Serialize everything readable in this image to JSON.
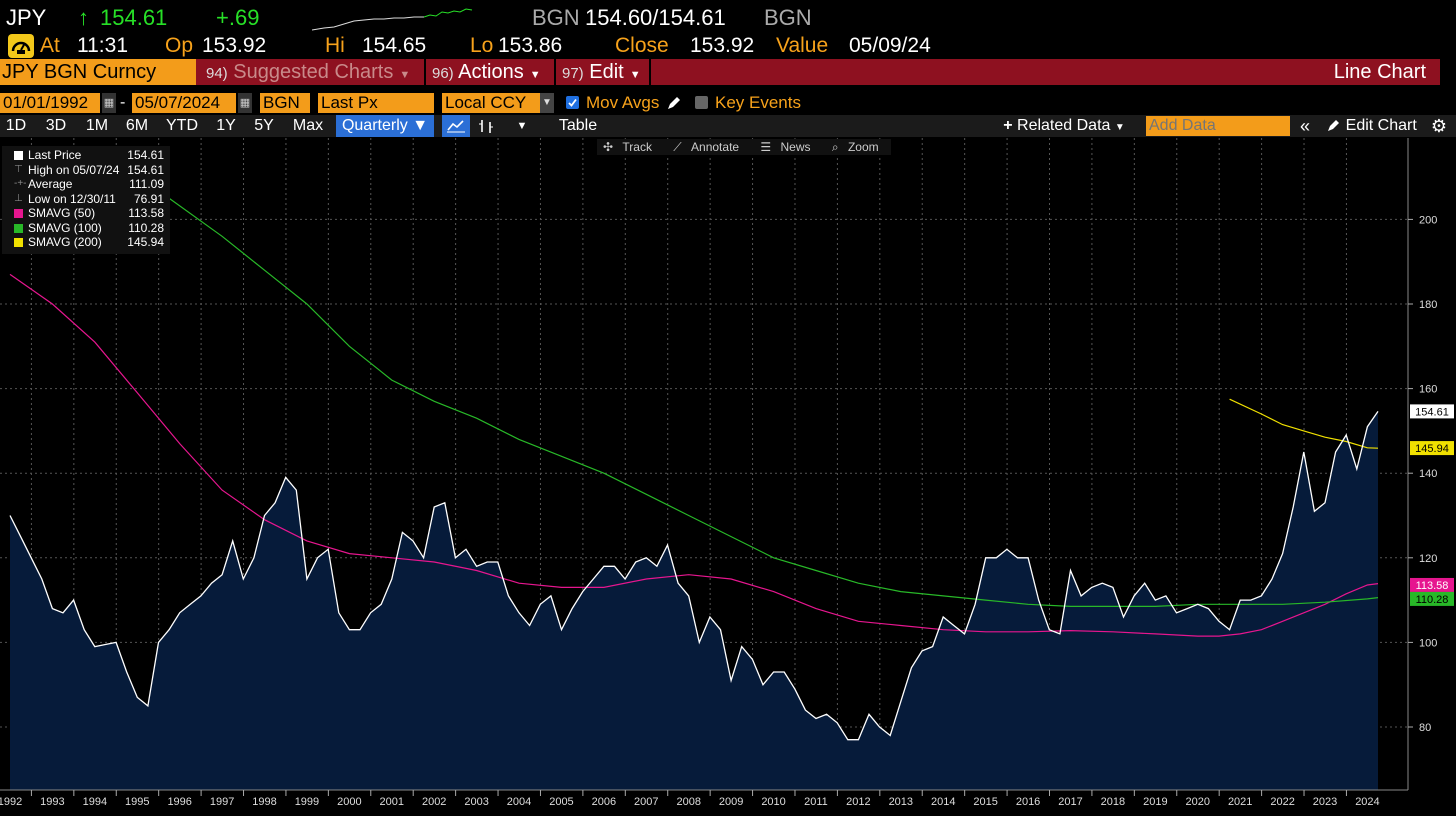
{
  "header": {
    "ticker": "JPY",
    "arrow": "↑",
    "price": "154.61",
    "change": "+.69",
    "source": "BGN",
    "bid_ask": "154.60/154.61",
    "source2": "BGN",
    "at_label": "At",
    "time": "11:31",
    "op_label": "Op",
    "open": "153.92",
    "hi_label": "Hi",
    "high": "154.65",
    "lo_label": "Lo",
    "low": "153.86",
    "close_label": "Close",
    "close": "153.92",
    "value_label": "Value",
    "value_date": "05/09/24"
  },
  "menubar": {
    "security": "JPY BGN Curncy",
    "suggested_num": "94)",
    "suggested": "Suggested Charts",
    "actions_num": "96)",
    "actions": "Actions",
    "edit_num": "97)",
    "edit": "Edit",
    "chart_type": "Line Chart"
  },
  "settings": {
    "start_date": "01/01/1992",
    "dash": "-",
    "end_date": "05/07/2024",
    "source": "BGN",
    "field": "Last Px",
    "currency": "Local CCY",
    "mov_avgs": "Mov Avgs",
    "key_events": "Key Events"
  },
  "toolbar": {
    "periods": [
      "1D",
      "3D",
      "1M",
      "6M",
      "YTD",
      "1Y",
      "5Y",
      "Max"
    ],
    "frequency": "Quarterly",
    "table": "Table",
    "related_data": "Related Data",
    "add_data_placeholder": "Add Data",
    "edit_chart": "Edit Chart"
  },
  "chart_tools": {
    "track": "Track",
    "annotate": "Annotate",
    "news": "News",
    "zoom": "Zoom"
  },
  "legend": [
    {
      "name": "Last Price",
      "value": "154.61",
      "color": "#ffffff"
    },
    {
      "name": "High on 05/07/24",
      "value": "154.61",
      "color": "none"
    },
    {
      "name": "Average",
      "value": "111.09",
      "color": "none"
    },
    {
      "name": "Low on 12/30/11",
      "value": "76.91",
      "color": "none"
    },
    {
      "name": "SMAVG (50)",
      "value": "113.58",
      "color": "#e6168f"
    },
    {
      "name": "SMAVG (100)",
      "value": "110.28",
      "color": "#28b828"
    },
    {
      "name": "SMAVG (200)",
      "value": "145.94",
      "color": "#f0e000"
    }
  ],
  "chart_data": {
    "type": "area",
    "y_ticks": [
      80,
      100,
      120,
      140,
      160,
      180,
      200
    ],
    "ylim": [
      65,
      220
    ],
    "x_labels": [
      "1992",
      "1993",
      "1994",
      "1995",
      "1996",
      "1997",
      "1998",
      "1999",
      "2000",
      "2001",
      "2002",
      "2003",
      "2004",
      "2005",
      "2006",
      "2007",
      "2008",
      "2009",
      "2010",
      "2011",
      "2012",
      "2013",
      "2014",
      "2015",
      "2016",
      "2017",
      "2018",
      "2019",
      "2020",
      "2021",
      "2022",
      "2023",
      "2024"
    ],
    "series": [
      {
        "name": "Last Price",
        "color": "#ffffff",
        "fill": "#061b3a",
        "x": [
          1992.0,
          1992.25,
          1992.5,
          1992.75,
          1993.0,
          1993.25,
          1993.5,
          1993.75,
          1994.0,
          1994.25,
          1994.5,
          1994.75,
          1995.0,
          1995.25,
          1995.5,
          1995.75,
          1996.0,
          1996.25,
          1996.5,
          1996.75,
          1997.0,
          1997.25,
          1997.5,
          1997.75,
          1998.0,
          1998.25,
          1998.5,
          1998.75,
          1999.0,
          1999.25,
          1999.5,
          1999.75,
          2000.0,
          2000.25,
          2000.5,
          2000.75,
          2001.0,
          2001.25,
          2001.5,
          2001.75,
          2002.0,
          2002.25,
          2002.5,
          2002.75,
          2003.0,
          2003.25,
          2003.5,
          2003.75,
          2004.0,
          2004.25,
          2004.5,
          2004.75,
          2005.0,
          2005.25,
          2005.5,
          2005.75,
          2006.0,
          2006.25,
          2006.5,
          2006.75,
          2007.0,
          2007.25,
          2007.5,
          2007.75,
          2008.0,
          2008.25,
          2008.5,
          2008.75,
          2009.0,
          2009.25,
          2009.5,
          2009.75,
          2010.0,
          2010.25,
          2010.5,
          2010.75,
          2011.0,
          2011.25,
          2011.5,
          2011.75,
          2012.0,
          2012.25,
          2012.5,
          2012.75,
          2013.0,
          2013.25,
          2013.5,
          2013.75,
          2014.0,
          2014.25,
          2014.5,
          2014.75,
          2015.0,
          2015.25,
          2015.5,
          2015.75,
          2016.0,
          2016.25,
          2016.5,
          2016.75,
          2017.0,
          2017.25,
          2017.5,
          2017.75,
          2018.0,
          2018.25,
          2018.5,
          2018.75,
          2019.0,
          2019.25,
          2019.5,
          2019.75,
          2020.0,
          2020.25,
          2020.5,
          2020.75,
          2021.0,
          2021.25,
          2021.5,
          2021.75,
          2022.0,
          2022.25,
          2022.5,
          2022.75,
          2023.0,
          2023.25,
          2023.5,
          2023.75,
          2024.0,
          2024.25
        ],
        "values": [
          130,
          125,
          120,
          115,
          108,
          107,
          110,
          103,
          99,
          99.5,
          100,
          93,
          87,
          85,
          100,
          103,
          107,
          109,
          111,
          114,
          116,
          124,
          115,
          120,
          130,
          133,
          139,
          136,
          115,
          120,
          122,
          107,
          103,
          103,
          107,
          109,
          115,
          126,
          124,
          120,
          132,
          133,
          120,
          122,
          118,
          119,
          119,
          111,
          107,
          104,
          109,
          111,
          103,
          108,
          112,
          115,
          118,
          118,
          115,
          119,
          120,
          118,
          123,
          114,
          111,
          100,
          106,
          103,
          91,
          99,
          96,
          90,
          93,
          93,
          89,
          84,
          82,
          83,
          81,
          77,
          77,
          83,
          80,
          78,
          86,
          94,
          98,
          99,
          106,
          104,
          102,
          109,
          120,
          120,
          122,
          120,
          120,
          110,
          103,
          102,
          117,
          111,
          113,
          114,
          113,
          106,
          111,
          114,
          110,
          111,
          107,
          108,
          109,
          108,
          105,
          103,
          110,
          110,
          111,
          115,
          121,
          132,
          145,
          131,
          133,
          145,
          149,
          141,
          151,
          154.6
        ]
      },
      {
        "name": "SMAVG (50)",
        "color": "#e6168f",
        "x": [
          1992.0,
          1993.0,
          1994.0,
          1995.0,
          1996.0,
          1997.0,
          1998.0,
          1999.0,
          2000.0,
          2001.0,
          2002.0,
          2003.0,
          2004.0,
          2005.0,
          2006.0,
          2007.0,
          2008.0,
          2009.0,
          2010.0,
          2011.0,
          2012.0,
          2013.0,
          2014.0,
          2015.0,
          2016.0,
          2017.0,
          2018.0,
          2019.0,
          2020.0,
          2020.5,
          2021.0,
          2021.5,
          2022.0,
          2022.5,
          2023.0,
          2023.5,
          2024.0,
          2024.25
        ],
        "values": [
          187,
          180,
          171,
          159,
          147,
          136,
          129,
          124,
          121,
          120,
          119,
          117,
          114,
          113,
          113,
          115,
          116,
          115,
          112,
          108,
          105,
          104,
          103,
          102.5,
          102.5,
          102.8,
          102.5,
          102,
          101.5,
          101.5,
          102,
          103,
          105,
          107,
          109,
          111.5,
          113.58,
          113.9
        ]
      },
      {
        "name": "SMAVG (100)",
        "color": "#28b828",
        "x": [
          1995.75,
          1997.0,
          1998.0,
          1999.0,
          2000.0,
          2001.0,
          2002.0,
          2003.0,
          2004.0,
          2005.0,
          2006.0,
          2007.0,
          2008.0,
          2009.0,
          2010.0,
          2011.0,
          2012.0,
          2013.0,
          2014.0,
          2015.0,
          2016.0,
          2017.0,
          2018.0,
          2019.0,
          2020.0,
          2021.0,
          2022.0,
          2023.0,
          2024.0,
          2024.25
        ],
        "values": [
          205,
          196,
          188,
          180,
          170,
          162,
          157,
          153,
          148,
          144,
          140,
          135,
          130,
          125,
          120,
          117,
          114,
          112,
          111,
          110,
          109,
          108.5,
          108.5,
          108.5,
          109,
          109,
          109,
          109.5,
          110.28,
          110.6
        ]
      },
      {
        "name": "SMAVG (200)",
        "color": "#f0e000",
        "x": [
          2020.75,
          2021.5,
          2022.0,
          2022.5,
          2023.0,
          2023.5,
          2024.0,
          2024.25
        ],
        "values": [
          157.5,
          154,
          151.5,
          150,
          148.5,
          147.5,
          146,
          145.9
        ]
      }
    ],
    "tags": [
      {
        "label": "154.61",
        "value": 154.61,
        "bg": "#ffffff",
        "fg": "#000000"
      },
      {
        "label": "145.94",
        "value": 145.94,
        "bg": "#f0e000",
        "fg": "#000000"
      },
      {
        "label": "113.58",
        "value": 113.58,
        "bg": "#e6168f",
        "fg": "#ffffff"
      },
      {
        "label": "110.28",
        "value": 110.28,
        "bg": "#28b828",
        "fg": "#000000"
      }
    ],
    "grid": true
  }
}
